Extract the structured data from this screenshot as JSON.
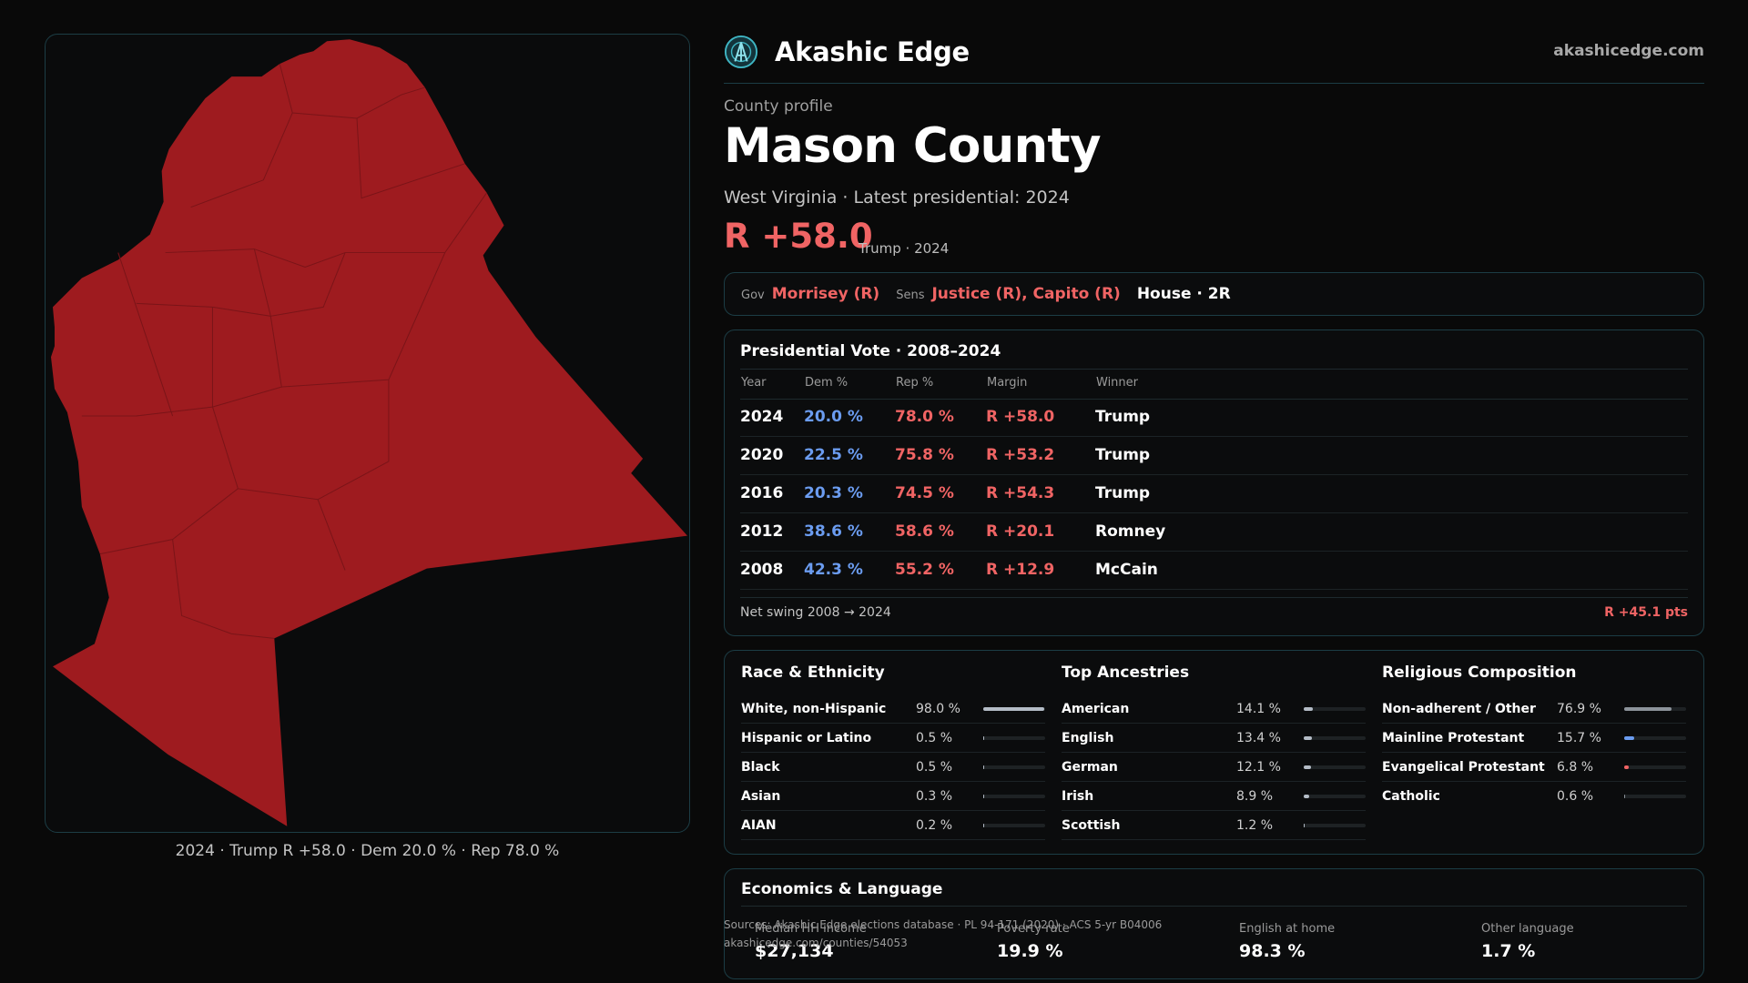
{
  "map": {
    "caption": "2024 · Trump R +58.0 · Dem 20.0 % · Rep 78.0 %",
    "fill_color": "#9e1b1f"
  },
  "brand": {
    "logo_icon": "akashic-edge-logo-icon",
    "name": "Akashic Edge",
    "url": "akashicedge.com"
  },
  "profile": {
    "kicker": "County profile",
    "title": "Mason County",
    "subtitle": "West Virginia · Latest presidential: 2024",
    "margin": "R +58.0",
    "margin_note": "Trump · 2024"
  },
  "officials": {
    "gov_label": "Gov",
    "gov_value": "Morrisey (R)",
    "sens_label": "Sens",
    "sens_value": "Justice (R), Capito (R)",
    "house": "House · 2R"
  },
  "presidential": {
    "title": "Presidential Vote · 2008–2024",
    "headers": [
      "Year",
      "Dem %",
      "Rep %",
      "Margin",
      "Winner"
    ],
    "rows": [
      {
        "year": "2024",
        "dem": "20.0 %",
        "rep": "78.0 %",
        "margin": "R +58.0",
        "winner": "Trump"
      },
      {
        "year": "2020",
        "dem": "22.5 %",
        "rep": "75.8 %",
        "margin": "R +53.2",
        "winner": "Trump"
      },
      {
        "year": "2016",
        "dem": "20.3 %",
        "rep": "74.5 %",
        "margin": "R +54.3",
        "winner": "Trump"
      },
      {
        "year": "2012",
        "dem": "38.6 %",
        "rep": "58.6 %",
        "margin": "R +20.1",
        "winner": "Romney"
      },
      {
        "year": "2008",
        "dem": "42.3 %",
        "rep": "55.2 %",
        "margin": "R +12.9",
        "winner": "McCain"
      }
    ],
    "swing_label": "Net swing 2008 → 2024",
    "swing_value": "R +45.1 pts"
  },
  "demographics": {
    "race": {
      "title": "Race & Ethnicity",
      "bar_color": "#b4bcc6",
      "items": [
        {
          "label": "White, non-Hispanic",
          "value": "98.0 %",
          "pct": 98.0
        },
        {
          "label": "Hispanic or Latino",
          "value": "0.5 %",
          "pct": 0.5
        },
        {
          "label": "Black",
          "value": "0.5 %",
          "pct": 0.5
        },
        {
          "label": "Asian",
          "value": "0.3 %",
          "pct": 0.3
        },
        {
          "label": "AIAN",
          "value": "0.2 %",
          "pct": 0.2
        }
      ]
    },
    "ancestry": {
      "title": "Top Ancestries",
      "bar_color": "#b4bcc6",
      "items": [
        {
          "label": "American",
          "value": "14.1 %",
          "pct": 14.1
        },
        {
          "label": "English",
          "value": "13.4 %",
          "pct": 13.4
        },
        {
          "label": "German",
          "value": "12.1 %",
          "pct": 12.1
        },
        {
          "label": "Irish",
          "value": "8.9 %",
          "pct": 8.9
        },
        {
          "label": "Scottish",
          "value": "1.2 %",
          "pct": 1.2
        }
      ]
    },
    "religion": {
      "title": "Religious Composition",
      "items": [
        {
          "label": "Non-adherent / Other",
          "value": "76.9 %",
          "pct": 76.9,
          "color": "#8c939a"
        },
        {
          "label": "Mainline Protestant",
          "value": "15.7 %",
          "pct": 15.7,
          "color": "#6b9cf0"
        },
        {
          "label": "Evangelical Protestant",
          "value": "6.8 %",
          "pct": 6.8,
          "color": "#f06464"
        },
        {
          "label": "Catholic",
          "value": "0.6 %",
          "pct": 0.6,
          "color": "#8c939a"
        }
      ]
    }
  },
  "economics": {
    "title": "Economics & Language",
    "items": [
      {
        "label": "Median HH income",
        "value": "$27,134"
      },
      {
        "label": "Poverty rate",
        "value": "19.9 %"
      },
      {
        "label": "English at home",
        "value": "98.3 %"
      },
      {
        "label": "Other language",
        "value": "1.7 %"
      }
    ]
  },
  "sources": {
    "line1": "Sources: Akashic Edge elections database · PL 94-171 (2020) · ACS 5-yr B04006",
    "line2": "akashicedge.com/counties/54053"
  }
}
